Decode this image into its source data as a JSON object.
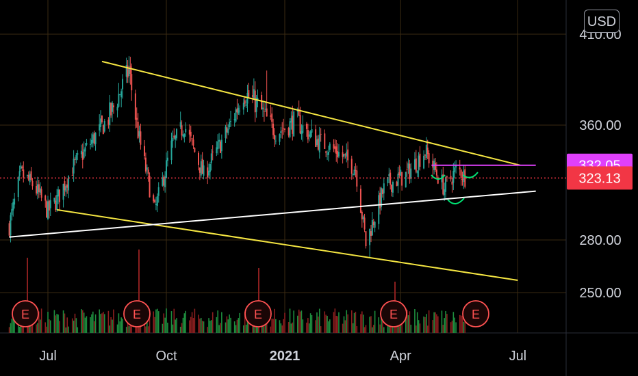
{
  "currency_button": "USD",
  "chart_data": {
    "type": "candlestick",
    "y_axis": {
      "ticks": [
        250,
        280,
        360,
        410
      ],
      "tick_labels": [
        "250.00",
        "280.00",
        "360.00",
        "410.00"
      ],
      "range": [
        225,
        425
      ]
    },
    "x_axis": {
      "tick_labels": [
        "Jul",
        "Oct",
        "2021",
        "Apr",
        "Jul"
      ],
      "bold": [
        false,
        false,
        true,
        false,
        false
      ]
    },
    "price_tags": [
      {
        "value": 332.05,
        "label": "332.05",
        "color": "#e040fb"
      },
      {
        "value": 323.13,
        "label": "323.13",
        "color": "#f23645"
      }
    ],
    "earnings_markers": {
      "label": "E",
      "count": 5,
      "color": "#ff5252"
    },
    "trendlines": [
      {
        "name": "upper-channel",
        "color": "#f5e642",
        "from": [
          "2020-08-12",
          395
        ],
        "to": [
          "2021-07-03",
          332
        ]
      },
      {
        "name": "lower-channel",
        "color": "#f5e642",
        "from": [
          "2020-07-08",
          301
        ],
        "to": [
          "2021-07-01",
          257
        ]
      },
      {
        "name": "support",
        "color": "#ffffff",
        "from": [
          "2020-06-01",
          282
        ],
        "to": [
          "2021-07-15",
          314
        ]
      },
      {
        "name": "resistance",
        "color": "#e040fb",
        "from": [
          "2021-04-25",
          332.05
        ],
        "to": [
          "2021-07-15",
          332.05
        ]
      }
    ],
    "price_path": [
      [
        "2020-06-01",
        290
      ],
      [
        "2020-06-10",
        326
      ],
      [
        "2020-06-20",
        318
      ],
      [
        "2020-07-01",
        300
      ],
      [
        "2020-07-08",
        308
      ],
      [
        "2020-07-20",
        330
      ],
      [
        "2020-08-05",
        350
      ],
      [
        "2020-08-20",
        368
      ],
      [
        "2020-09-02",
        390
      ],
      [
        "2020-09-10",
        350
      ],
      [
        "2020-09-22",
        300
      ],
      [
        "2020-10-05",
        345
      ],
      [
        "2020-10-15",
        360
      ],
      [
        "2020-10-30",
        325
      ],
      [
        "2020-11-15",
        352
      ],
      [
        "2020-11-30",
        378
      ],
      [
        "2020-12-10",
        372
      ],
      [
        "2020-12-25",
        355
      ],
      [
        "2021-01-10",
        362
      ],
      [
        "2021-01-25",
        350
      ],
      [
        "2021-02-10",
        342
      ],
      [
        "2021-02-25",
        330
      ],
      [
        "2021-03-05",
        278
      ],
      [
        "2021-03-20",
        318
      ],
      [
        "2021-04-05",
        325
      ],
      [
        "2021-04-20",
        342
      ],
      [
        "2021-05-05",
        316
      ],
      [
        "2021-05-15",
        330
      ],
      [
        "2021-05-22",
        323
      ]
    ]
  }
}
